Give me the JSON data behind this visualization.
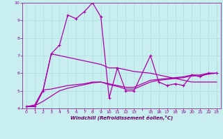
{
  "xlabel": "Windchill (Refroidissement éolien,°C)",
  "background_color": "#c8eef0",
  "grid_color": "#b0dde0",
  "line_color": "#aa00aa",
  "xlim": [
    -0.5,
    23.5
  ],
  "ylim": [
    4,
    10
  ],
  "yticks": [
    4,
    5,
    6,
    7,
    8,
    9,
    10
  ],
  "xtick_labels": [
    "0",
    "1",
    "2",
    "3",
    "4",
    "5",
    "6",
    "7",
    "8",
    "9",
    "10",
    "11",
    "12",
    "13",
    "",
    "15",
    "16",
    "17",
    "18",
    "19",
    "20",
    "21",
    "22",
    "23"
  ],
  "xtick_pos": [
    0,
    1,
    2,
    3,
    4,
    5,
    6,
    7,
    8,
    9,
    10,
    11,
    12,
    13,
    14,
    15,
    16,
    17,
    18,
    19,
    20,
    21,
    22,
    23
  ],
  "series1_x": [
    0,
    1,
    2,
    3,
    4,
    5,
    6,
    7,
    8,
    9,
    10,
    11,
    12,
    13,
    15,
    16,
    17,
    18,
    19,
    20,
    21,
    22,
    23
  ],
  "series1_y": [
    4.1,
    4.1,
    5.0,
    7.1,
    7.6,
    9.3,
    9.1,
    9.5,
    10.0,
    9.2,
    4.6,
    6.3,
    5.0,
    5.0,
    7.0,
    5.5,
    5.3,
    5.4,
    5.3,
    5.9,
    5.8,
    6.0,
    6.0
  ],
  "series2_x": [
    0,
    1,
    2,
    3,
    4,
    5,
    6,
    7,
    8,
    9,
    10,
    11,
    12,
    13,
    15,
    16,
    17,
    18,
    19,
    20,
    21,
    22,
    23
  ],
  "series2_y": [
    4.1,
    4.1,
    5.0,
    7.1,
    7.0,
    6.9,
    6.8,
    6.7,
    6.6,
    6.5,
    6.3,
    6.3,
    6.2,
    6.1,
    6.0,
    5.9,
    5.8,
    5.7,
    5.6,
    5.5,
    5.5,
    5.5,
    5.5
  ],
  "series3_x": [
    0,
    1,
    2,
    3,
    4,
    5,
    6,
    7,
    8,
    9,
    10,
    11,
    12,
    13,
    15,
    16,
    17,
    18,
    19,
    20,
    21,
    22,
    23
  ],
  "series3_y": [
    4.1,
    4.2,
    5.05,
    5.1,
    5.2,
    5.3,
    5.35,
    5.4,
    5.5,
    5.5,
    5.4,
    5.3,
    5.2,
    5.2,
    5.6,
    5.65,
    5.7,
    5.75,
    5.8,
    5.9,
    5.9,
    6.0,
    6.0
  ],
  "series4_x": [
    0,
    1,
    2,
    3,
    4,
    5,
    6,
    7,
    8,
    9,
    10,
    11,
    12,
    13,
    15,
    16,
    17,
    18,
    19,
    20,
    21,
    22,
    23
  ],
  "series4_y": [
    4.1,
    4.15,
    4.4,
    4.7,
    5.0,
    5.15,
    5.25,
    5.35,
    5.45,
    5.5,
    5.35,
    5.25,
    5.1,
    5.1,
    5.5,
    5.6,
    5.65,
    5.7,
    5.75,
    5.85,
    5.85,
    5.95,
    6.0
  ]
}
